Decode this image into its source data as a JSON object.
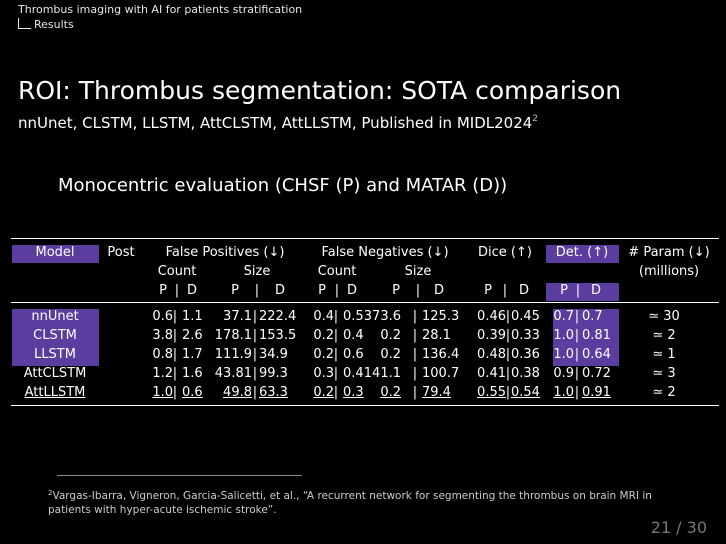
{
  "breadcrumb": {
    "section": "Thrombus imaging with AI for patients stratification",
    "subsection": "Results"
  },
  "slide": {
    "title": "ROI: Thrombus segmentation: SOTA comparison",
    "subtitle": "nnUnet, CLSTM, LLSTM, AttCLSTM, AttLLSTM, Published in MIDL2024",
    "subtitle_ref": "2",
    "section_heading": "Monocentric evaluation (CHSF (P) and MATAR (D))"
  },
  "colors": {
    "background": "#000000",
    "highlight": "#5a3d9e",
    "text": "#ffffff"
  },
  "table": {
    "headers": {
      "model": "Model",
      "post": "Post",
      "fp": "False Positives (↓)",
      "fn": "False Negatives (↓)",
      "dice": "Dice (↑)",
      "det": "Det. (↑)",
      "param": "# Param (↓)",
      "count": "Count",
      "size": "Size",
      "millions": "(millions)",
      "p": "P",
      "d": "D",
      "sep": "|"
    },
    "rows": [
      {
        "model": "nnUnet",
        "fp_count_p": "0.6",
        "fp_count_d": "1.1",
        "fp_size_p": "37.1",
        "fp_size_d": "222.4",
        "fn_count_p": "0.4",
        "fn_count_d": "0.5",
        "fn_size_p": "373.6",
        "fn_size_d": "125.3",
        "dice_p": "0.46",
        "dice_d": "0.45",
        "det_p": "0.7",
        "det_d": "0.7",
        "param": "≃ 30"
      },
      {
        "model": "CLSTM",
        "fp_count_p": "3.8",
        "fp_count_d": "2.6",
        "fp_size_p": "178.1",
        "fp_size_d": "153.5",
        "fn_count_p": "0.2",
        "fn_count_d": "0.4",
        "fn_size_p": "0.2",
        "fn_size_d": "28.1",
        "dice_p": "0.39",
        "dice_d": "0.33",
        "det_p": "1.0",
        "det_d": "0.81",
        "param": "≃ 2"
      },
      {
        "model": "LLSTM",
        "fp_count_p": "0.8",
        "fp_count_d": "1.7",
        "fp_size_p": "111.9",
        "fp_size_d": "34.9",
        "fn_count_p": "0.2",
        "fn_count_d": "0.6",
        "fn_size_p": "0.2",
        "fn_size_d": "136.4",
        "dice_p": "0.48",
        "dice_d": "0.36",
        "det_p": "1.0",
        "det_d": "0.64",
        "param": "≃ 1"
      },
      {
        "model": "AttCLSTM",
        "fp_count_p": "1.2",
        "fp_count_d": "1.6",
        "fp_size_p": "43.81",
        "fp_size_d": "99.3",
        "fn_count_p": "0.3",
        "fn_count_d": "0.4",
        "fn_size_p": "141.1",
        "fn_size_d": "100.7",
        "dice_p": "0.41",
        "dice_d": "0.38",
        "det_p": "0.9",
        "det_d": "0.72",
        "param": "≃ 3"
      },
      {
        "model": "AttLLSTM",
        "fp_count_p": "1.0",
        "fp_count_d": "0.6",
        "fp_size_p": "49.8",
        "fp_size_d": "63.3",
        "fn_count_p": "0.2",
        "fn_count_d": "0.3",
        "fn_size_p": "0.2",
        "fn_size_d": "79.4",
        "dice_p": "0.55",
        "dice_d": "0.54",
        "det_p": "1.0",
        "det_d": "0.91",
        "param": "≃ 2"
      }
    ]
  },
  "footnote": {
    "marker": "2",
    "text": "Vargas-Ibarra, Vigneron, Garcia-Salicetti, et al., “A recurrent network for segmenting the thrombus on brain MRI in patients with hyper-acute ischemic stroke”."
  },
  "page": {
    "current": "21",
    "sep": "/",
    "total": "30"
  }
}
